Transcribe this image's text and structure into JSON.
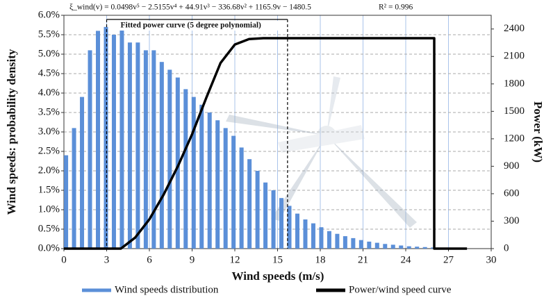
{
  "chart_data": {
    "type": "bar_line",
    "formula": "ξ_wind(v) = 0.0498v⁵ − 2.5155v⁴ + 44.91v³ − 336.68v² + 1165.9v − 1480.5",
    "r_squared": "R² = 0.996",
    "annotation": {
      "text": "Fitted power curve (5 degree polynomial)",
      "x_range": [
        3,
        15.7
      ]
    },
    "xlabel": "Wind speeds (m/s)",
    "ylabel": "Wind speeds: probability density",
    "y2label": "Power (kW)",
    "xlim": [
      0,
      30
    ],
    "xticks": [
      0,
      3,
      6,
      9,
      12,
      15,
      18,
      21,
      24,
      27,
      30
    ],
    "ylim": [
      0,
      6
    ],
    "yticks": [
      {
        "value": 0,
        "label": "0.0%"
      },
      {
        "value": 0.5,
        "label": "0.5%"
      },
      {
        "value": 1,
        "label": "1.0%"
      },
      {
        "value": 1.5,
        "label": "1.5%"
      },
      {
        "value": 2,
        "label": "2.0%"
      },
      {
        "value": 2.5,
        "label": "2.5%"
      },
      {
        "value": 3,
        "label": "3.0%"
      },
      {
        "value": 3.5,
        "label": "3.5%"
      },
      {
        "value": 4,
        "label": "4.0%"
      },
      {
        "value": 4.5,
        "label": "4.5%"
      },
      {
        "value": 5,
        "label": "5.0%"
      },
      {
        "value": 5.5,
        "label": "5.5%"
      },
      {
        "value": 6,
        "label": "6.0%"
      }
    ],
    "y2lim": [
      0,
      2550
    ],
    "y2ticks": [
      0,
      300,
      600,
      900,
      1200,
      1500,
      1800,
      2100,
      2400
    ],
    "grid": true,
    "series": [
      {
        "name": "Wind speeds distribution",
        "color": "#5b8fd8",
        "kind": "bar",
        "x": [
          0.15,
          0.71,
          1.27,
          1.83,
          2.39,
          2.95,
          3.51,
          4.07,
          4.63,
          5.19,
          5.75,
          6.31,
          6.87,
          7.43,
          7.99,
          8.55,
          9.11,
          9.67,
          10.23,
          10.79,
          11.35,
          11.91,
          12.47,
          13.03,
          13.59,
          14.15,
          14.71,
          15.27,
          15.83,
          16.39,
          16.95,
          17.51,
          18.07,
          18.63,
          19.19,
          19.75,
          20.31,
          20.87,
          21.43,
          21.99,
          22.55,
          23.11,
          23.67,
          24.23,
          24.79,
          25.35,
          25.91
        ],
        "values": [
          2.4,
          3.1,
          3.9,
          5.1,
          5.6,
          5.7,
          5.5,
          5.7,
          5.3,
          5.3,
          5.1,
          5.1,
          4.8,
          4.6,
          4.4,
          4.1,
          3.9,
          3.7,
          3.5,
          3.3,
          3.1,
          2.9,
          2.6,
          2.3,
          2.0,
          1.7,
          1.5,
          1.3,
          1.1,
          0.9,
          0.75,
          0.65,
          0.55,
          0.45,
          0.38,
          0.32,
          0.27,
          0.22,
          0.18,
          0.15,
          0.12,
          0.1,
          0.08,
          0.06,
          0.05,
          0.04,
          0.03
        ]
      },
      {
        "name": "Power/wind speed curve",
        "color": "#000000",
        "kind": "line",
        "axis": "y2",
        "x": [
          0,
          4,
          5,
          6,
          7,
          8,
          9,
          10,
          11,
          12,
          13,
          14,
          26,
          26,
          28.3
        ],
        "values": [
          0,
          0,
          120,
          320,
          590,
          900,
          1250,
          1650,
          2030,
          2230,
          2290,
          2300,
          2300,
          0,
          0
        ]
      }
    ]
  }
}
